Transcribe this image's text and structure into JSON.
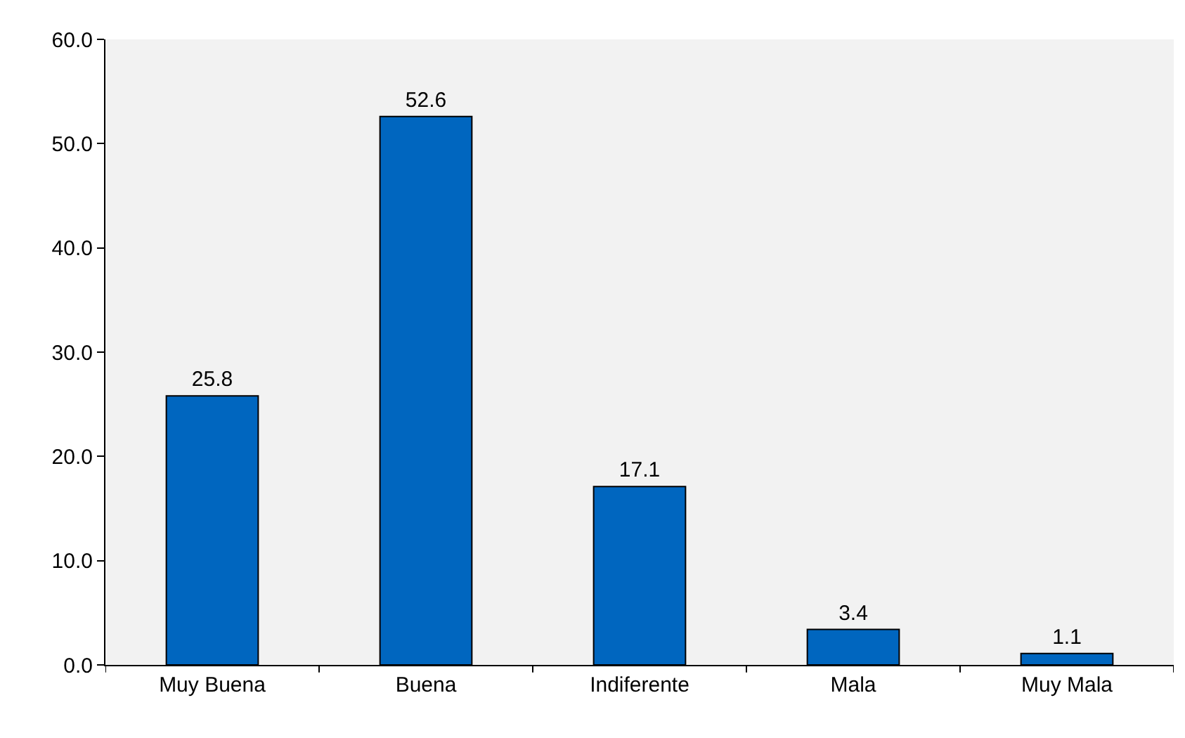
{
  "chart_data": {
    "type": "bar",
    "categories": [
      "Muy Buena",
      "Buena",
      "Indiferente",
      "Mala",
      "Muy Mala"
    ],
    "values": [
      25.8,
      52.6,
      17.1,
      3.4,
      1.1
    ],
    "color": "#0066bf",
    "ylim": [
      0,
      60
    ],
    "yticks": [
      {
        "value": 0,
        "label": "0.0"
      },
      {
        "value": 10,
        "label": "10.0"
      },
      {
        "value": 20,
        "label": "20.0"
      },
      {
        "value": 30,
        "label": "30.0"
      },
      {
        "value": 40,
        "label": "40.0"
      },
      {
        "value": 50,
        "label": "50.0"
      },
      {
        "value": 60,
        "label": "60.0"
      }
    ],
    "data_labels": true,
    "grid": false,
    "legend": false
  }
}
